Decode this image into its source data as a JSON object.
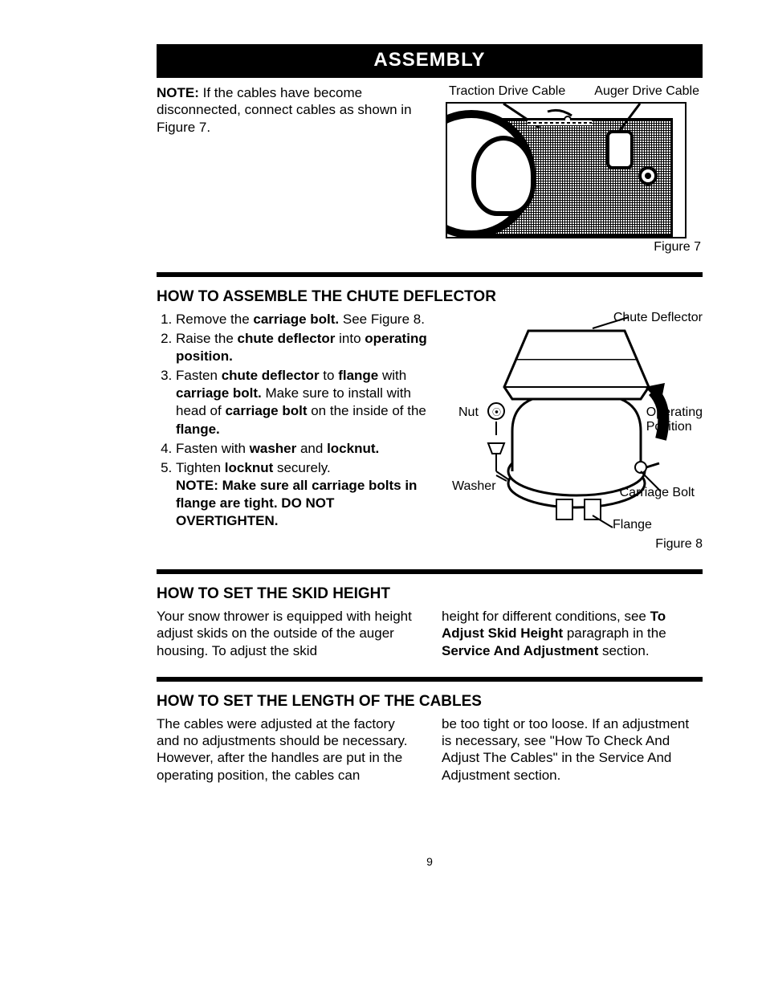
{
  "header": {
    "title": "ASSEMBLY"
  },
  "section1": {
    "note_html": "<span class='b'>NOTE:</span> If the cables have become disconnected, connect cables as shown in Figure 7.",
    "label_left": "Traction Drive Cable",
    "label_right": "Auger Drive Cable",
    "fig_caption": "Figure 7"
  },
  "section2": {
    "heading": "HOW TO ASSEMBLE THE CHUTE DEFLECTOR",
    "steps": [
      "Remove the <span class='b'>carriage bolt.</span> See Figure 8.",
      "Raise the <span class='b'>chute deflector</span> into <span class='b'>operating position.</span>",
      "Fasten <span class='b'>chute deflector</span> to <span class='b'>flange</span> with <span class='b'>carriage bolt.</span> Make sure to install with head of <span class='b'>carriage bolt</span> on the inside of the <span class='b'>flange.</span>",
      "Fasten with <span class='b'>washer</span> and <span class='b'>locknut.</span>",
      "Tighten <span class='b'>locknut</span> securely.<br><span class='b'>NOTE: Make sure all carriage bolts in flange are tight. DO NOT OVERTIGHTEN.</span>"
    ],
    "fig_labels": {
      "chute": "Chute Deflector",
      "nut": "Nut",
      "operating": "Operating\nPosition",
      "washer": "Washer",
      "carriage": "Carriage Bolt",
      "flange": "Flange"
    },
    "fig_caption": "Figure 8"
  },
  "section3": {
    "heading": "HOW TO SET THE SKID HEIGHT",
    "col1": "Your snow thrower is equipped with height adjust skids on the outside of the auger housing. To adjust the skid",
    "col2_html": "height for different conditions, see <span class='b'>To Adjust Skid Height</span> paragraph in the <span class='b'>Service And Adjustment</span> section."
  },
  "section4": {
    "heading": "HOW TO SET THE LENGTH OF THE CABLES",
    "col1": "The cables were adjusted at the factory and no adjustments should be necessary. However, after the handles are put in the operating position, the cables can",
    "col2": "be too tight or too loose. If an adjustment is necessary, see \"How To Check And Adjust The Cables\" in the Service And Adjustment section."
  },
  "page_number": "9",
  "colors": {
    "bg": "#ffffff",
    "text": "#000000",
    "bar_bg": "#000000",
    "bar_text": "#ffffff"
  }
}
